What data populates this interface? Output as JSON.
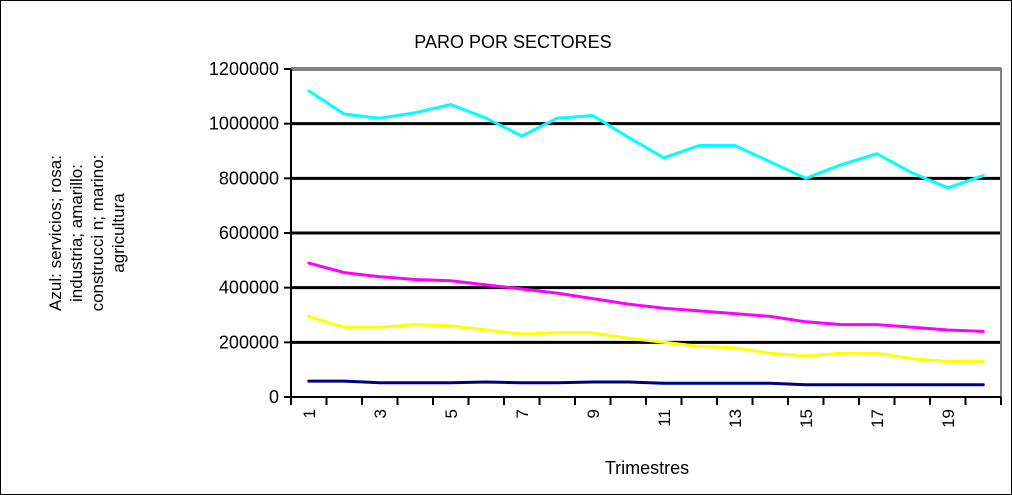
{
  "chart_data": {
    "type": "line",
    "title": "PARO POR SECTORES",
    "xlabel": "Trimestres",
    "ylabel_lines": [
      "Azul: servicios; rosa:",
      "industria; amarillo:",
      "construcci n; marino:",
      "agricultura"
    ],
    "x": [
      1,
      2,
      3,
      4,
      5,
      6,
      7,
      8,
      9,
      10,
      11,
      12,
      13,
      14,
      15,
      16,
      17,
      18,
      19,
      20
    ],
    "x_tick_labels": [
      "1",
      "",
      "3",
      "",
      "5",
      "",
      "7",
      "",
      "9",
      "",
      "11",
      "",
      "13",
      "",
      "15",
      "",
      "17",
      "",
      "19",
      ""
    ],
    "ylim": [
      0,
      1200000
    ],
    "y_ticks": [
      0,
      200000,
      400000,
      600000,
      800000,
      1000000,
      1200000
    ],
    "y_tick_labels": [
      "0",
      "200000",
      "400000",
      "600000",
      "800000",
      "1000000",
      "1200000"
    ],
    "grid": "horizontal",
    "series": [
      {
        "color": "#00ffff",
        "values": [
          1120000,
          1035000,
          1020000,
          1040000,
          1070000,
          1020000,
          955000,
          1020000,
          1030000,
          950000,
          875000,
          920000,
          920000,
          860000,
          800000,
          850000,
          890000,
          820000,
          765000,
          810000
        ]
      },
      {
        "color": "#ff00ff",
        "values": [
          490000,
          455000,
          440000,
          430000,
          425000,
          410000,
          395000,
          380000,
          360000,
          340000,
          325000,
          315000,
          305000,
          295000,
          275000,
          265000,
          265000,
          255000,
          245000,
          240000
        ]
      },
      {
        "color": "#ffff00",
        "values": [
          295000,
          255000,
          255000,
          265000,
          260000,
          245000,
          230000,
          235000,
          235000,
          215000,
          200000,
          185000,
          180000,
          160000,
          150000,
          160000,
          160000,
          140000,
          130000,
          130000
        ]
      },
      {
        "color": "#000080",
        "values": [
          58000,
          58000,
          52000,
          52000,
          52000,
          55000,
          52000,
          52000,
          55000,
          55000,
          50000,
          50000,
          50000,
          50000,
          45000,
          45000,
          45000,
          45000,
          45000,
          45000
        ]
      }
    ]
  }
}
